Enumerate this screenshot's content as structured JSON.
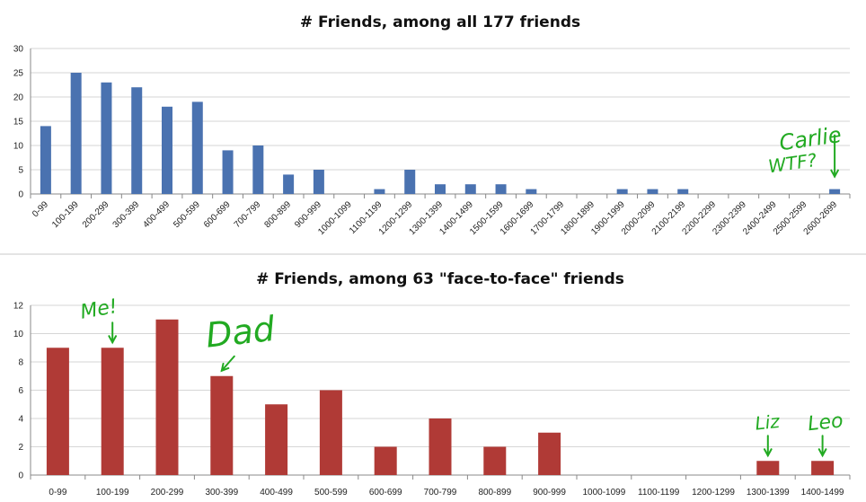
{
  "chart_data": [
    {
      "type": "bar",
      "title": "# Friends, among all 177 friends",
      "categories": [
        "0-99",
        "100-199",
        "200-299",
        "300-399",
        "400-499",
        "500-599",
        "600-699",
        "700-799",
        "800-899",
        "900-999",
        "1000-1099",
        "1100-1199",
        "1200-1299",
        "1300-1399",
        "1400-1499",
        "1500-1599",
        "1600-1699",
        "1700-1799",
        "1800-1899",
        "1900-1999",
        "2000-2099",
        "2100-2199",
        "2200-2299",
        "2300-2399",
        "2400-2499",
        "2500-2599",
        "2600-2699"
      ],
      "values": [
        14,
        25,
        23,
        22,
        18,
        19,
        9,
        10,
        4,
        5,
        0,
        1,
        5,
        2,
        2,
        2,
        1,
        0,
        0,
        1,
        1,
        1,
        0,
        0,
        0,
        0,
        1
      ],
      "ylim": [
        0,
        30
      ],
      "yticks": [
        0,
        5,
        10,
        15,
        20,
        25,
        30
      ],
      "grid": true,
      "legend": "none",
      "color": "#4a72b0",
      "annotations": [
        {
          "text": "Carlie",
          "category": "2600-2699"
        },
        {
          "text": "WTF?",
          "category": "2600-2699"
        }
      ]
    },
    {
      "type": "bar",
      "title": "# Friends, among 63 \"face-to-face\" friends",
      "categories": [
        "0-99",
        "100-199",
        "200-299",
        "300-399",
        "400-499",
        "500-599",
        "600-699",
        "700-799",
        "800-899",
        "900-999",
        "1000-1099",
        "1100-1199",
        "1200-1299",
        "1300-1399",
        "1400-1499"
      ],
      "values": [
        9,
        9,
        11,
        7,
        5,
        6,
        2,
        4,
        2,
        3,
        0,
        0,
        0,
        1,
        1
      ],
      "ylim": [
        0,
        12
      ],
      "yticks": [
        0,
        2,
        4,
        6,
        8,
        10,
        12
      ],
      "grid": true,
      "legend": "none",
      "color": "#b03a36",
      "annotations": [
        {
          "text": "Me!",
          "category": "100-199"
        },
        {
          "text": "Dad",
          "category": "300-399"
        },
        {
          "text": "Liz",
          "category": "1300-1399"
        },
        {
          "text": "Leo",
          "category": "1400-1499"
        }
      ]
    }
  ]
}
